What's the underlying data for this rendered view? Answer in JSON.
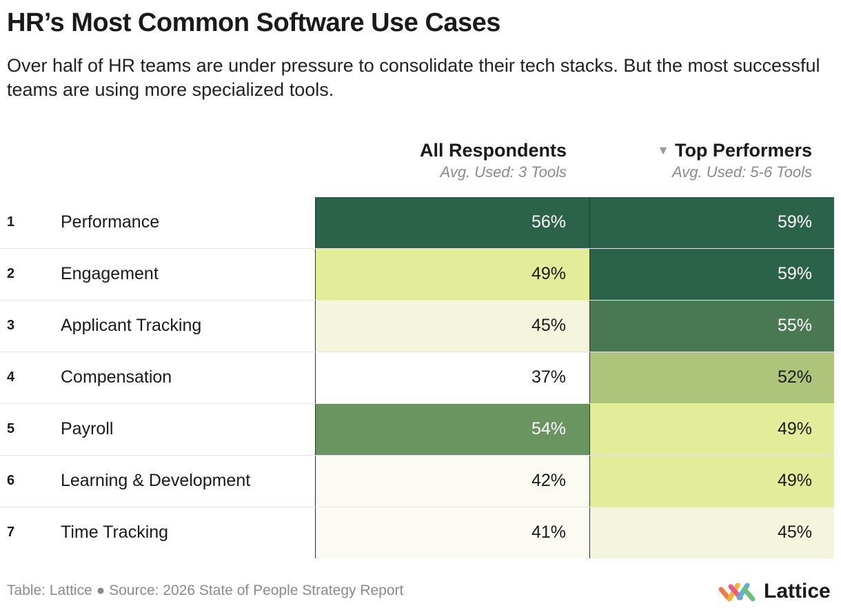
{
  "title": "HR’s Most Common Software Use Cases",
  "subtitle": "Over half of HR teams are under pressure to consolidate their tech stacks. But the most successful teams are using more specialized tools.",
  "columns": {
    "all": {
      "header": "All Respondents",
      "sub": "Avg. Used: 3 Tools"
    },
    "top": {
      "header": "Top Performers",
      "sub": "Avg. Used: 5-6 Tools"
    }
  },
  "chart_data": {
    "type": "table",
    "title": "HR’s Most Common Software Use Cases",
    "sort": "Top Performers, descending",
    "rows": [
      {
        "rank": "1",
        "label": "Performance",
        "all": "56%",
        "top": "59%",
        "all_value": 56,
        "top_value": 59
      },
      {
        "rank": "2",
        "label": "Engagement",
        "all": "49%",
        "top": "59%",
        "all_value": 49,
        "top_value": 59
      },
      {
        "rank": "3",
        "label": "Applicant Tracking",
        "all": "45%",
        "top": "55%",
        "all_value": 45,
        "top_value": 55
      },
      {
        "rank": "4",
        "label": "Compensation",
        "all": "37%",
        "top": "52%",
        "all_value": 37,
        "top_value": 52
      },
      {
        "rank": "5",
        "label": "Payroll",
        "all": "54%",
        "top": "49%",
        "all_value": 54,
        "top_value": 49
      },
      {
        "rank": "6",
        "label": "Learning & Development",
        "all": "42%",
        "top": "49%",
        "all_value": 42,
        "top_value": 49
      },
      {
        "rank": "7",
        "label": "Time Tracking",
        "all": "41%",
        "top": "45%",
        "all_value": 41,
        "top_value": 45
      }
    ]
  },
  "footer": "Table: Lattice ● Source: 2026 State of People Strategy Report",
  "logo": {
    "text": "Lattice"
  },
  "colors": {
    "scale": [
      "#fbfbf3",
      "#f3f6dc",
      "#e3ec98",
      "#adc47a",
      "#6a9460",
      "#4a7852",
      "#2b634a"
    ],
    "light_text": "#ffffff",
    "dark_text": "#1a1a1a"
  }
}
